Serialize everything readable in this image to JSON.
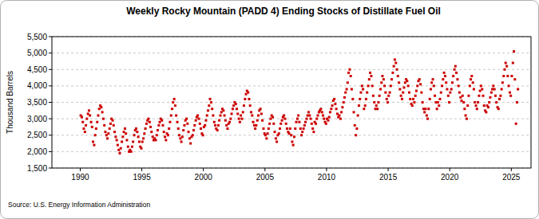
{
  "chart_data": {
    "type": "scatter",
    "title": "Weekly Rocky Mountain (PADD 4) Ending Stocks of Distillate Fuel Oil",
    "y_label": "Thousand Barrels",
    "source": "Source: U.S. Energy Information Administration",
    "color": "#cc0000",
    "marker": "square",
    "grid": true,
    "xlim": [
      1987.7,
      2026.6
    ],
    "ylim": [
      1500,
      5500
    ],
    "xticks": [
      1990,
      1995,
      2000,
      2005,
      2010,
      2015,
      2020,
      2025
    ],
    "yticks": [
      {
        "value": 1500,
        "label": "1,500"
      },
      {
        "value": 2000,
        "label": "2,000"
      },
      {
        "value": 2500,
        "label": "2,500"
      },
      {
        "value": 3000,
        "label": "3,000"
      },
      {
        "value": 3500,
        "label": "3,500"
      },
      {
        "value": 4000,
        "label": "4,000"
      },
      {
        "value": 4500,
        "label": "4,500"
      },
      {
        "value": 5000,
        "label": "5,000"
      },
      {
        "value": 5500,
        "label": "5,500"
      }
    ],
    "x": [
      1990.04,
      1990.13,
      1990.21,
      1990.29,
      1990.38,
      1990.46,
      1990.54,
      1990.63,
      1990.71,
      1990.79,
      1990.88,
      1990.96,
      1991.04,
      1991.13,
      1991.21,
      1991.29,
      1991.38,
      1991.46,
      1991.54,
      1991.63,
      1991.71,
      1991.79,
      1991.88,
      1991.96,
      1992.04,
      1992.13,
      1992.21,
      1992.29,
      1992.38,
      1992.46,
      1992.54,
      1992.63,
      1992.71,
      1992.79,
      1992.88,
      1992.96,
      1993.04,
      1993.13,
      1993.21,
      1993.29,
      1993.38,
      1993.46,
      1993.54,
      1993.63,
      1993.71,
      1993.79,
      1993.88,
      1993.96,
      1994.04,
      1994.13,
      1994.21,
      1994.29,
      1994.38,
      1994.46,
      1994.54,
      1994.63,
      1994.71,
      1994.79,
      1994.88,
      1994.96,
      1995.04,
      1995.13,
      1995.21,
      1995.29,
      1995.38,
      1995.46,
      1995.54,
      1995.63,
      1995.71,
      1995.79,
      1995.88,
      1995.96,
      1996.04,
      1996.13,
      1996.21,
      1996.29,
      1996.38,
      1996.46,
      1996.54,
      1996.63,
      1996.71,
      1996.79,
      1996.88,
      1996.96,
      1997.04,
      1997.13,
      1997.21,
      1997.29,
      1997.38,
      1997.46,
      1997.54,
      1997.63,
      1997.71,
      1997.79,
      1997.88,
      1997.96,
      1998.04,
      1998.13,
      1998.21,
      1998.29,
      1998.38,
      1998.46,
      1998.54,
      1998.63,
      1998.71,
      1998.79,
      1998.88,
      1998.96,
      1999.04,
      1999.13,
      1999.21,
      1999.29,
      1999.38,
      1999.46,
      1999.54,
      1999.63,
      1999.71,
      1999.79,
      1999.88,
      1999.96,
      2000.04,
      2000.13,
      2000.21,
      2000.29,
      2000.38,
      2000.46,
      2000.54,
      2000.63,
      2000.71,
      2000.79,
      2000.88,
      2000.96,
      2001.04,
      2001.13,
      2001.21,
      2001.29,
      2001.38,
      2001.46,
      2001.54,
      2001.63,
      2001.71,
      2001.79,
      2001.88,
      2001.96,
      2002.04,
      2002.13,
      2002.21,
      2002.29,
      2002.38,
      2002.46,
      2002.54,
      2002.63,
      2002.71,
      2002.79,
      2002.88,
      2002.96,
      2003.04,
      2003.13,
      2003.21,
      2003.29,
      2003.38,
      2003.46,
      2003.54,
      2003.63,
      2003.71,
      2003.79,
      2003.88,
      2003.96,
      2004.04,
      2004.13,
      2004.21,
      2004.29,
      2004.38,
      2004.46,
      2004.54,
      2004.63,
      2004.71,
      2004.79,
      2004.88,
      2004.96,
      2005.04,
      2005.13,
      2005.21,
      2005.29,
      2005.38,
      2005.46,
      2005.54,
      2005.63,
      2005.71,
      2005.79,
      2005.88,
      2005.96,
      2006.04,
      2006.13,
      2006.21,
      2006.29,
      2006.38,
      2006.46,
      2006.54,
      2006.63,
      2006.71,
      2006.79,
      2006.88,
      2006.96,
      2007.04,
      2007.13,
      2007.21,
      2007.29,
      2007.38,
      2007.46,
      2007.54,
      2007.63,
      2007.71,
      2007.79,
      2007.88,
      2007.96,
      2008.04,
      2008.13,
      2008.21,
      2008.29,
      2008.38,
      2008.46,
      2008.54,
      2008.63,
      2008.71,
      2008.79,
      2008.88,
      2008.96,
      2009.04,
      2009.13,
      2009.21,
      2009.29,
      2009.38,
      2009.46,
      2009.54,
      2009.63,
      2009.71,
      2009.79,
      2009.88,
      2009.96,
      2010.04,
      2010.13,
      2010.21,
      2010.29,
      2010.38,
      2010.46,
      2010.54,
      2010.63,
      2010.71,
      2010.79,
      2010.88,
      2010.96,
      2011.04,
      2011.13,
      2011.21,
      2011.29,
      2011.38,
      2011.46,
      2011.54,
      2011.63,
      2011.71,
      2011.79,
      2011.88,
      2011.96,
      2012.04,
      2012.13,
      2012.21,
      2012.29,
      2012.38,
      2012.46,
      2012.54,
      2012.63,
      2012.71,
      2012.79,
      2012.88,
      2012.96,
      2013.04,
      2013.13,
      2013.21,
      2013.29,
      2013.38,
      2013.46,
      2013.54,
      2013.63,
      2013.71,
      2013.79,
      2013.88,
      2013.96,
      2014.04,
      2014.13,
      2014.21,
      2014.29,
      2014.38,
      2014.46,
      2014.54,
      2014.63,
      2014.71,
      2014.79,
      2014.88,
      2014.96,
      2015.04,
      2015.13,
      2015.21,
      2015.29,
      2015.38,
      2015.46,
      2015.54,
      2015.63,
      2015.71,
      2015.79,
      2015.88,
      2015.96,
      2016.04,
      2016.13,
      2016.21,
      2016.29,
      2016.38,
      2016.46,
      2016.54,
      2016.63,
      2016.71,
      2016.79,
      2016.88,
      2016.96,
      2017.04,
      2017.13,
      2017.21,
      2017.29,
      2017.38,
      2017.46,
      2017.54,
      2017.63,
      2017.71,
      2017.79,
      2017.88,
      2017.96,
      2018.04,
      2018.13,
      2018.21,
      2018.29,
      2018.38,
      2018.46,
      2018.54,
      2018.63,
      2018.71,
      2018.79,
      2018.88,
      2018.96,
      2019.04,
      2019.13,
      2019.21,
      2019.29,
      2019.38,
      2019.46,
      2019.54,
      2019.63,
      2019.71,
      2019.79,
      2019.88,
      2019.96,
      2020.04,
      2020.13,
      2020.21,
      2020.29,
      2020.38,
      2020.46,
      2020.54,
      2020.63,
      2020.71,
      2020.79,
      2020.88,
      2020.96,
      2021.04,
      2021.13,
      2021.21,
      2021.29,
      2021.38,
      2021.46,
      2021.54,
      2021.63,
      2021.71,
      2021.79,
      2021.88,
      2021.96,
      2022.04,
      2022.13,
      2022.21,
      2022.29,
      2022.38,
      2022.46,
      2022.54,
      2022.63,
      2022.71,
      2022.79,
      2022.88,
      2022.96,
      2023.04,
      2023.13,
      2023.21,
      2023.29,
      2023.38,
      2023.46,
      2023.54,
      2023.63,
      2023.71,
      2023.79,
      2023.88,
      2023.96,
      2024.04,
      2024.13,
      2024.21,
      2024.29,
      2024.38,
      2024.46,
      2024.54,
      2024.63,
      2024.71,
      2024.79,
      2024.88,
      2024.96,
      2025.04,
      2025.13,
      2025.21,
      2025.29,
      2025.38,
      2025.46,
      2025.54
    ],
    "values": [
      3100,
      3050,
      2900,
      2700,
      2600,
      2800,
      3000,
      3150,
      3250,
      3100,
      2900,
      2750,
      2300,
      2200,
      2500,
      2700,
      2900,
      3100,
      3300,
      3400,
      3350,
      3200,
      3000,
      2800,
      2600,
      2500,
      2400,
      2550,
      2700,
      2850,
      3000,
      2950,
      2800,
      2600,
      2450,
      2350,
      2200,
      2050,
      1950,
      2100,
      2300,
      2450,
      2600,
      2700,
      2550,
      2350,
      2150,
      2000,
      2050,
      2000,
      2150,
      2300,
      2500,
      2650,
      2700,
      2600,
      2450,
      2300,
      2150,
      2100,
      2300,
      2400,
      2550,
      2700,
      2850,
      2950,
      3000,
      2900,
      2750,
      2600,
      2450,
      2350,
      2400,
      2350,
      2500,
      2650,
      2800,
      2900,
      3000,
      2950,
      2800,
      2600,
      2450,
      2350,
      2550,
      2500,
      2700,
      2900,
      3100,
      3300,
      3500,
      3600,
      3400,
      3100,
      2900,
      2700,
      2500,
      2400,
      2300,
      2450,
      2650,
      2800,
      2950,
      3000,
      2850,
      2600,
      2400,
      2250,
      2450,
      2500,
      2650,
      2800,
      2950,
      3050,
      3100,
      3000,
      2850,
      2700,
      2550,
      2500,
      2750,
      2800,
      2950,
      3100,
      3250,
      3400,
      3600,
      3500,
      3300,
      3100,
      2900,
      2800,
      2700,
      2650,
      2800,
      2950,
      3100,
      3200,
      3300,
      3250,
      3100,
      2950,
      2800,
      2700,
      2850,
      2900,
      3000,
      3150,
      3300,
      3400,
      3500,
      3450,
      3300,
      3150,
      3000,
      2900,
      3100,
      3000,
      3200,
      3400,
      3600,
      3750,
      3850,
      3800,
      3600,
      3400,
      3200,
      3100,
      2900,
      2800,
      2700,
      2800,
      2950,
      3100,
      3250,
      3300,
      3150,
      2950,
      2700,
      2550,
      2500,
      2400,
      2550,
      2700,
      2850,
      3000,
      3100,
      3050,
      2850,
      2600,
      2400,
      2300,
      2500,
      2550,
      2700,
      2850,
      2950,
      3050,
      3100,
      3000,
      2850,
      2700,
      2600,
      2550,
      2700,
      2500,
      2300,
      2200,
      2450,
      2700,
      2900,
      3000,
      3100,
      2900,
      2700,
      2500,
      2600,
      2700,
      2800,
      2900,
      3000,
      3100,
      3200,
      3100,
      3000,
      2850,
      2700,
      2600,
      2900,
      2850,
      3000,
      3100,
      3200,
      3250,
      3300,
      3200,
      3100,
      3000,
      2900,
      2850,
      3000,
      2950,
      3050,
      3200,
      3300,
      3400,
      3550,
      3600,
      3450,
      3300,
      3150,
      3050,
      3100,
      3000,
      3200,
      3350,
      3500,
      3650,
      3800,
      3900,
      4100,
      4400,
      4500,
      4300,
      3900,
      3600,
      3200,
      2800,
      2500,
      2700,
      3100,
      3400,
      3600,
      3800,
      4000,
      3900,
      3300,
      3400,
      3600,
      3800,
      4000,
      4200,
      4400,
      4300,
      4000,
      3700,
      3500,
      3300,
      3400,
      3300,
      3500,
      3700,
      3900,
      4100,
      4300,
      4200,
      4000,
      3800,
      3600,
      3500,
      3700,
      3800,
      4000,
      4200,
      4400,
      4600,
      4800,
      4700,
      4500,
      4300,
      4100,
      3900,
      3700,
      3600,
      3800,
      3950,
      4100,
      4200,
      4150,
      4000,
      3800,
      3600,
      3450,
      3400,
      3600,
      3500,
      3700,
      3850,
      4000,
      4150,
      4200,
      4050,
      3800,
      3500,
      3300,
      3200,
      3300,
      3100,
      3000,
      3300,
      3600,
      3900,
      4100,
      4200,
      4000,
      3700,
      3500,
      3300,
      3500,
      3400,
      3600,
      3800,
      4000,
      4200,
      4400,
      4300,
      4100,
      3900,
      3700,
      3500,
      3800,
      3900,
      4100,
      4300,
      4500,
      4600,
      4400,
      4200,
      4000,
      3800,
      3650,
      3550,
      3700,
      3500,
      3300,
      3100,
      3000,
      3400,
      3700,
      4000,
      4200,
      4300,
      4100,
      3900,
      3500,
      3400,
      3300,
      3500,
      3700,
      3850,
      4000,
      3900,
      3700,
      3400,
      3250,
      3200,
      3400,
      3350,
      3500,
      3650,
      3800,
      3900,
      4000,
      3900,
      3700,
      3500,
      3350,
      3300,
      3600,
      3700,
      3900,
      4100,
      4300,
      4500,
      4700,
      4600,
      4300,
      4000,
      3800,
      3700,
      4300,
      4700,
      5050,
      4200,
      2850,
      3500,
      3900
    ]
  }
}
